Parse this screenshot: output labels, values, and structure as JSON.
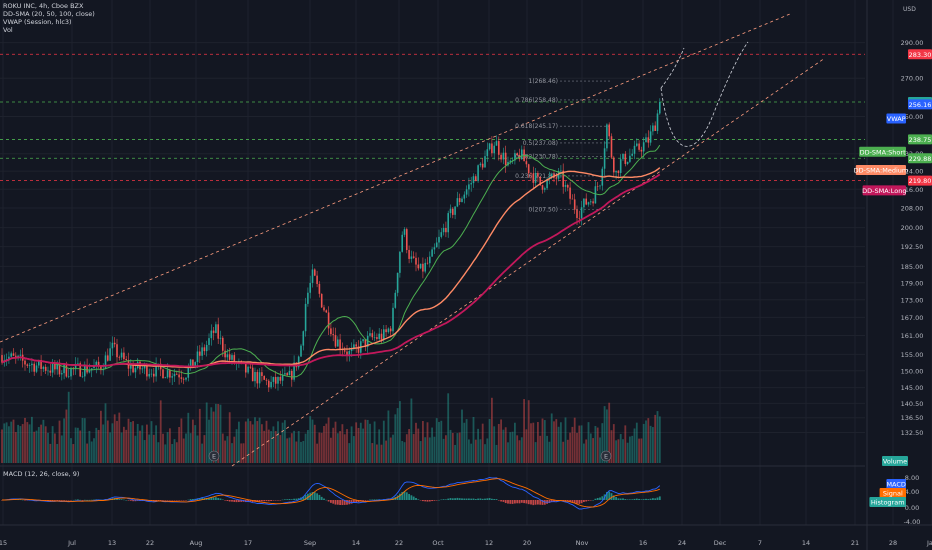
{
  "legend": {
    "title": "ROKU INC, 4h, Cboe BZX",
    "sma": "DD-SMA (20, 50, 100, close)",
    "vwap": "VWAP (Session, hlc3)",
    "vol": "Vol",
    "macd": "MACD (12, 26, close, 9)"
  },
  "currency": "USD",
  "colors": {
    "background": "#131722",
    "up": "#26a69a",
    "down": "#ef5350",
    "sma_short": "#4caf50",
    "sma_medium": "#ff8a65",
    "sma_long": "#c2185b",
    "channel": "#ff9e80",
    "resistance": "#f23645",
    "support": "#4caf50",
    "macd_line": "#2962ff",
    "signal_line": "#ff6d00"
  },
  "chart_data": {
    "type": "candlestick",
    "y_scale": "log",
    "ylim": [
      130,
      300
    ],
    "y_ticks": [
      "290.00",
      "270.00",
      "250.00",
      "232.00",
      "224.00",
      "216.00",
      "208.00",
      "200.00",
      "192.50",
      "185.00",
      "179.00",
      "173.00",
      "167.00",
      "161.00",
      "155.00",
      "150.00",
      "145.00",
      "140.50",
      "136.50",
      "132.50"
    ],
    "x_ticks": [
      "15",
      "Jul",
      "13",
      "22",
      "Aug",
      "17",
      "Sep",
      "14",
      "22",
      "Oct",
      "12",
      "20",
      "Nov",
      "16",
      "24",
      "Dec",
      "7",
      "14",
      "21",
      "28",
      "Jan"
    ],
    "price_levels": [
      {
        "label": "283.30",
        "value": 283.3,
        "kind": "resistance"
      },
      {
        "label": "257.40",
        "value": 257.4,
        "kind": "last"
      },
      {
        "label": "256.16",
        "value": 256.16,
        "kind": "vwap"
      },
      {
        "label": "238.75",
        "value": 238.75,
        "kind": "support"
      },
      {
        "label": "229.88",
        "value": 229.88,
        "kind": "support"
      },
      {
        "label": "219.80",
        "value": 219.8,
        "kind": "resistance"
      }
    ],
    "indicator_tags": [
      {
        "label": "VWAP",
        "value": 249.0
      },
      {
        "label": "DD-SMA:Short",
        "value": 232.9
      },
      {
        "label": "DD-SMA:Medium",
        "value": 224.5
      },
      {
        "label": "DD-SMA:Long",
        "value": 215.5
      }
    ],
    "fib_levels": [
      {
        "label": "1(268.46)",
        "value": 268.46
      },
      {
        "label": "0.786(258.48)",
        "value": 258.48
      },
      {
        "label": "0.618(245.17)",
        "value": 245.17
      },
      {
        "label": "0.5(237.08)",
        "value": 237.08
      },
      {
        "label": "0.382(230.78)",
        "value": 230.78
      },
      {
        "label": "0.236(221.87)",
        "value": 221.87
      },
      {
        "label": "0(207.50)",
        "value": 207.5
      }
    ],
    "macd_ticks": [
      "8.00",
      "4.00",
      "0.00",
      "-4.00"
    ],
    "macd_tags": [
      "MACD",
      "Signal",
      "Histogram"
    ],
    "volume_tag": "Volume",
    "events": [
      "E",
      "E",
      "E"
    ]
  }
}
